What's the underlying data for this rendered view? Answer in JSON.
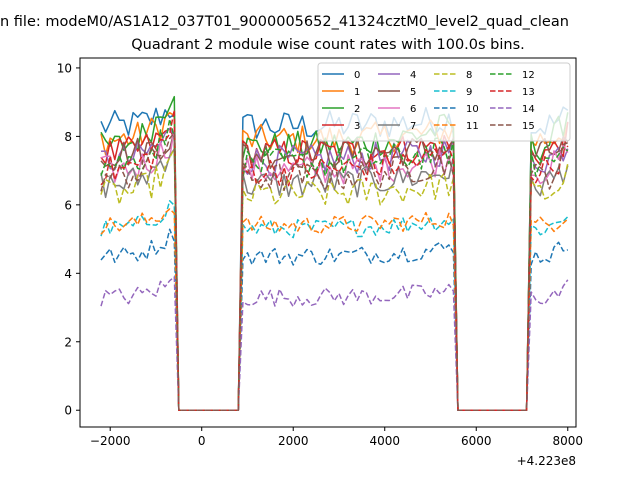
{
  "figure": {
    "suptitle": "n file: modeM0/AS1A12_037T01_9000005652_41324cztM0_level2_quad_clean",
    "offset_label": "+4.223e8"
  },
  "chart_data": {
    "type": "line",
    "title": "Quadrant 2 module wise count rates with 100.0s bins.",
    "xlabel": "",
    "ylabel": "",
    "x_offset": 422300000,
    "xlim": [
      -2660,
      8180
    ],
    "ylim": [
      -0.49,
      10.29
    ],
    "x_ticks": [
      -2000,
      0,
      2000,
      4000,
      6000,
      8000
    ],
    "x_tick_labels": [
      "−2000",
      "0",
      "2000",
      "4000",
      "6000",
      "8000"
    ],
    "y_ticks": [
      0,
      2,
      4,
      6,
      8,
      10
    ],
    "y_tick_labels": [
      "0",
      "2",
      "4",
      "6",
      "8",
      "10"
    ],
    "grid": false,
    "legend_position": "upper right",
    "legend_columns": 4,
    "segments": [
      {
        "on_start": -2200,
        "on_end": -600,
        "zero_start": -500,
        "zero_end": 800
      },
      {
        "on_start": 900,
        "on_end": 5500,
        "zero_start": 5600,
        "zero_end": 7100
      },
      {
        "on_start": 7200,
        "on_end": 8000
      }
    ],
    "series": [
      {
        "name": "0",
        "color": "#1f77b4",
        "style": "solid",
        "level": 8.3,
        "on_end": 8.9
      },
      {
        "name": "1",
        "color": "#ff7f0e",
        "style": "solid",
        "level": 7.9,
        "on_end": 8.7
      },
      {
        "name": "2",
        "color": "#2ca02c",
        "style": "solid",
        "level": 7.7,
        "on_end": 9.5
      },
      {
        "name": "3",
        "color": "#d62728",
        "style": "solid",
        "level": 7.5,
        "on_end": 8.3
      },
      {
        "name": "4",
        "color": "#9467bd",
        "style": "solid",
        "level": 7.3,
        "on_end": 8.2
      },
      {
        "name": "5",
        "color": "#8c564b",
        "style": "solid",
        "level": 7.5,
        "on_end": 8.0
      },
      {
        "name": "6",
        "color": "#e377c2",
        "style": "solid",
        "level": 7.0,
        "on_end": 8.0
      },
      {
        "name": "7",
        "color": "#7f7f7f",
        "style": "solid",
        "level": 6.6,
        "on_end": 7.8
      },
      {
        "name": "8",
        "color": "#bcbd22",
        "style": "dashed",
        "level": 6.3,
        "on_end": 7.3
      },
      {
        "name": "9",
        "color": "#17becf",
        "style": "dashed",
        "level": 5.3,
        "on_end": 6.1
      },
      {
        "name": "10",
        "color": "#1f77b4",
        "style": "dashed",
        "level": 4.5,
        "on_end": 5.2
      },
      {
        "name": "11",
        "color": "#ff7f0e",
        "style": "dashed",
        "level": 5.4,
        "on_end": 6.0
      },
      {
        "name": "12",
        "color": "#2ca02c",
        "style": "dashed",
        "level": 7.2,
        "on_end": 8.4
      },
      {
        "name": "13",
        "color": "#d62728",
        "style": "dashed",
        "level": 7.0,
        "on_end": 8.4
      },
      {
        "name": "14",
        "color": "#9467bd",
        "style": "dashed",
        "level": 3.3,
        "on_end": 3.8
      },
      {
        "name": "15",
        "color": "#8c564b",
        "style": "dashed",
        "level": 6.8,
        "on_end": 8.2
      }
    ]
  }
}
